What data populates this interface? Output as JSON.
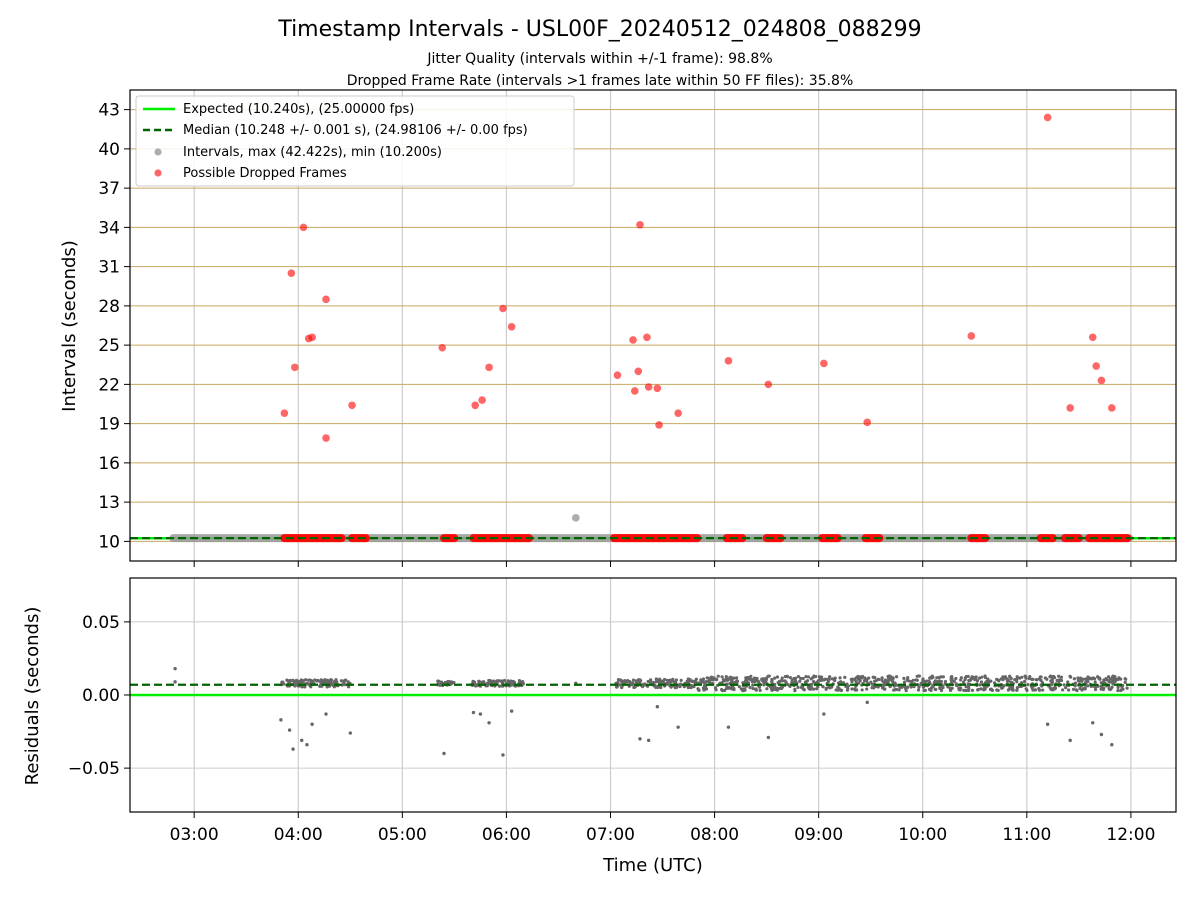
{
  "title": "Timestamp Intervals - USL00F_20240512_024808_088299",
  "subtitle_1": "Jitter Quality (intervals within +/-1 frame): 98.8%",
  "subtitle_2": "Dropped Frame Rate (intervals >1 frames late within 50 FF files): 35.8%",
  "xlabel": "Time (UTC)",
  "x_ticks": [
    "03:00",
    "04:00",
    "05:00",
    "06:00",
    "07:00",
    "08:00",
    "09:00",
    "10:00",
    "11:00",
    "12:00"
  ],
  "colors": {
    "expected": "#00ee00",
    "median": "#006400",
    "intervals": "#999999",
    "dropped": "#ff0000",
    "hgrid_top": "#c8a860",
    "grid": "#cccccc",
    "residual": "#666666"
  },
  "chart_data": [
    {
      "type": "scatter",
      "title": "Timestamp Intervals - USL00F_20240512_024808_088299",
      "xlabel": "",
      "ylabel": "Intervals (seconds)",
      "xlim": [
        "02:23",
        "12:26"
      ],
      "ylim": [
        8.5,
        44.5
      ],
      "y_ticks": [
        10,
        13,
        16,
        19,
        22,
        25,
        28,
        31,
        34,
        37,
        40,
        43
      ],
      "grid": "on",
      "legend_position": "top-left",
      "legend": [
        "Expected (10.240s), (25.00000 fps)",
        "Median (10.248 +/- 0.001 s), (24.98106 +/- 0.00 fps)",
        "Intervals, max (42.422s), min (10.200s)",
        "Possible Dropped Frames"
      ],
      "expected_value": 10.24,
      "median_value": 10.248,
      "interval_band": {
        "x_start": "02:48",
        "x_end": "11:59",
        "y": 10.248
      },
      "intervals_extra": [
        {
          "x": "06:40",
          "y": 11.8
        }
      ],
      "dropped_band_segments": [
        [
          "03:52",
          "04:25"
        ],
        [
          "04:31",
          "04:39"
        ],
        [
          "05:24",
          "05:30"
        ],
        [
          "05:41",
          "06:13"
        ],
        [
          "07:02",
          "07:50"
        ],
        [
          "08:07",
          "08:16"
        ],
        [
          "08:30",
          "08:38"
        ],
        [
          "09:02",
          "09:11"
        ],
        [
          "09:27",
          "09:35"
        ],
        [
          "10:28",
          "10:36"
        ],
        [
          "11:08",
          "11:15"
        ],
        [
          "11:22",
          "11:30"
        ],
        [
          "11:36",
          "11:58"
        ]
      ],
      "dropped_frames": [
        {
          "x": "03:52",
          "y": 19.8
        },
        {
          "x": "03:56",
          "y": 30.5
        },
        {
          "x": "03:58",
          "y": 23.3
        },
        {
          "x": "04:03",
          "y": 34.0
        },
        {
          "x": "04:06",
          "y": 25.5
        },
        {
          "x": "04:08",
          "y": 25.6
        },
        {
          "x": "04:16",
          "y": 28.5
        },
        {
          "x": "04:16",
          "y": 17.9
        },
        {
          "x": "04:31",
          "y": 20.4
        },
        {
          "x": "05:23",
          "y": 24.8
        },
        {
          "x": "05:42",
          "y": 20.4
        },
        {
          "x": "05:46",
          "y": 20.8
        },
        {
          "x": "05:50",
          "y": 23.3
        },
        {
          "x": "05:58",
          "y": 27.8
        },
        {
          "x": "06:03",
          "y": 26.4
        },
        {
          "x": "07:04",
          "y": 22.7
        },
        {
          "x": "07:13",
          "y": 25.4
        },
        {
          "x": "07:14",
          "y": 21.5
        },
        {
          "x": "07:16",
          "y": 23.0
        },
        {
          "x": "07:17",
          "y": 34.2
        },
        {
          "x": "07:21",
          "y": 25.6
        },
        {
          "x": "07:22",
          "y": 21.8
        },
        {
          "x": "07:27",
          "y": 21.7
        },
        {
          "x": "07:28",
          "y": 18.9
        },
        {
          "x": "07:39",
          "y": 19.8
        },
        {
          "x": "08:08",
          "y": 23.8
        },
        {
          "x": "08:31",
          "y": 22.0
        },
        {
          "x": "09:03",
          "y": 23.6
        },
        {
          "x": "09:28",
          "y": 19.1
        },
        {
          "x": "10:28",
          "y": 25.7
        },
        {
          "x": "11:12",
          "y": 42.4
        },
        {
          "x": "11:25",
          "y": 20.2
        },
        {
          "x": "11:38",
          "y": 25.6
        },
        {
          "x": "11:40",
          "y": 23.4
        },
        {
          "x": "11:43",
          "y": 22.3
        },
        {
          "x": "11:49",
          "y": 20.2
        }
      ]
    },
    {
      "type": "scatter",
      "xlabel": "Time (UTC)",
      "ylabel": "Residuals (seconds)",
      "xlim": [
        "02:23",
        "12:26"
      ],
      "ylim": [
        -0.08,
        0.08
      ],
      "y_ticks": [
        0.05,
        0.0,
        -0.05
      ],
      "y_tick_labels": [
        "0.05",
        "0.00",
        "−0.05"
      ],
      "grid": "on",
      "expected_value": 0.0,
      "median_value": 0.007,
      "residual_bands": [
        {
          "x_start": "03:50",
          "x_end": "04:30",
          "y": 0.008,
          "spread": 0.0025
        },
        {
          "x_start": "05:20",
          "x_end": "05:30",
          "y": 0.008,
          "spread": 0.0015
        },
        {
          "x_start": "05:40",
          "x_end": "06:10",
          "y": 0.008,
          "spread": 0.002
        },
        {
          "x_start": "07:03",
          "x_end": "07:50",
          "y": 0.008,
          "spread": 0.003
        },
        {
          "x_start": "07:50",
          "x_end": "11:58",
          "y": 0.008,
          "spread": 0.005
        }
      ],
      "residuals": [
        {
          "x": "02:49",
          "y": 0.018
        },
        {
          "x": "02:49",
          "y": 0.009
        },
        {
          "x": "03:50",
          "y": -0.017
        },
        {
          "x": "03:55",
          "y": -0.024
        },
        {
          "x": "03:57",
          "y": -0.037
        },
        {
          "x": "04:02",
          "y": -0.031
        },
        {
          "x": "04:05",
          "y": -0.034
        },
        {
          "x": "04:08",
          "y": -0.02
        },
        {
          "x": "04:16",
          "y": -0.013
        },
        {
          "x": "04:30",
          "y": -0.026
        },
        {
          "x": "05:24",
          "y": -0.04
        },
        {
          "x": "05:41",
          "y": -0.012
        },
        {
          "x": "05:45",
          "y": -0.013
        },
        {
          "x": "05:50",
          "y": -0.019
        },
        {
          "x": "05:58",
          "y": -0.041
        },
        {
          "x": "06:03",
          "y": -0.011
        },
        {
          "x": "07:17",
          "y": -0.03
        },
        {
          "x": "07:22",
          "y": -0.031
        },
        {
          "x": "07:27",
          "y": -0.008
        },
        {
          "x": "07:39",
          "y": -0.022
        },
        {
          "x": "08:08",
          "y": -0.022
        },
        {
          "x": "08:31",
          "y": -0.029
        },
        {
          "x": "09:03",
          "y": -0.013
        },
        {
          "x": "09:28",
          "y": -0.005
        },
        {
          "x": "11:12",
          "y": -0.02
        },
        {
          "x": "11:25",
          "y": -0.031
        },
        {
          "x": "11:38",
          "y": -0.019
        },
        {
          "x": "11:43",
          "y": -0.027
        },
        {
          "x": "11:49",
          "y": -0.034
        },
        {
          "x": "06:40",
          "y": 0.008
        }
      ]
    }
  ]
}
